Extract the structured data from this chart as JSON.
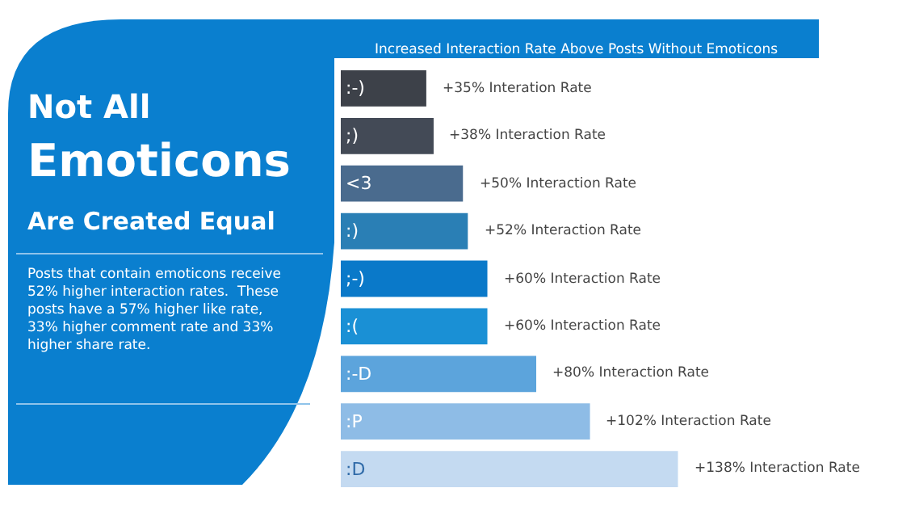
{
  "chart_data": {
    "type": "bar",
    "orientation": "horizontal",
    "title": "Not All\nEmoticons\nAre Created Equal",
    "subtitle": "Increased Interaction Rate Above Posts Without Emoticons",
    "annotations": [
      "Posts that contain emoticons receive\n52% higher interaction rates.  These\nposts have a 57% higher like rate,\n33% higher comment rate and 33%\nhigher share rate."
    ],
    "categories": [
      ":-)",
      ";)",
      "<3",
      ":)",
      ";-)",
      ":(",
      ":-D",
      ":P",
      ":D"
    ],
    "values": [
      35,
      38,
      50,
      52,
      60,
      60,
      80,
      102,
      138
    ],
    "value_labels": [
      "+35% Interation Rate",
      "+38% Interaction Rate",
      "+50% Interaction Rate",
      "+52% Interaction Rate",
      "+60% Interaction Rate",
      "+60% Interaction Rate",
      "+80% Interaction Rate",
      "+102% Interaction Rate",
      "+138% Interaction Rate"
    ],
    "colors": [
      "#3d4149",
      "#434a56",
      "#4a6b8e",
      "#2a7fb5",
      "#0a79c9",
      "#1a90d5",
      "#5ca4dc",
      "#8ebce6",
      "#c4daf1"
    ],
    "legend": false
  }
}
